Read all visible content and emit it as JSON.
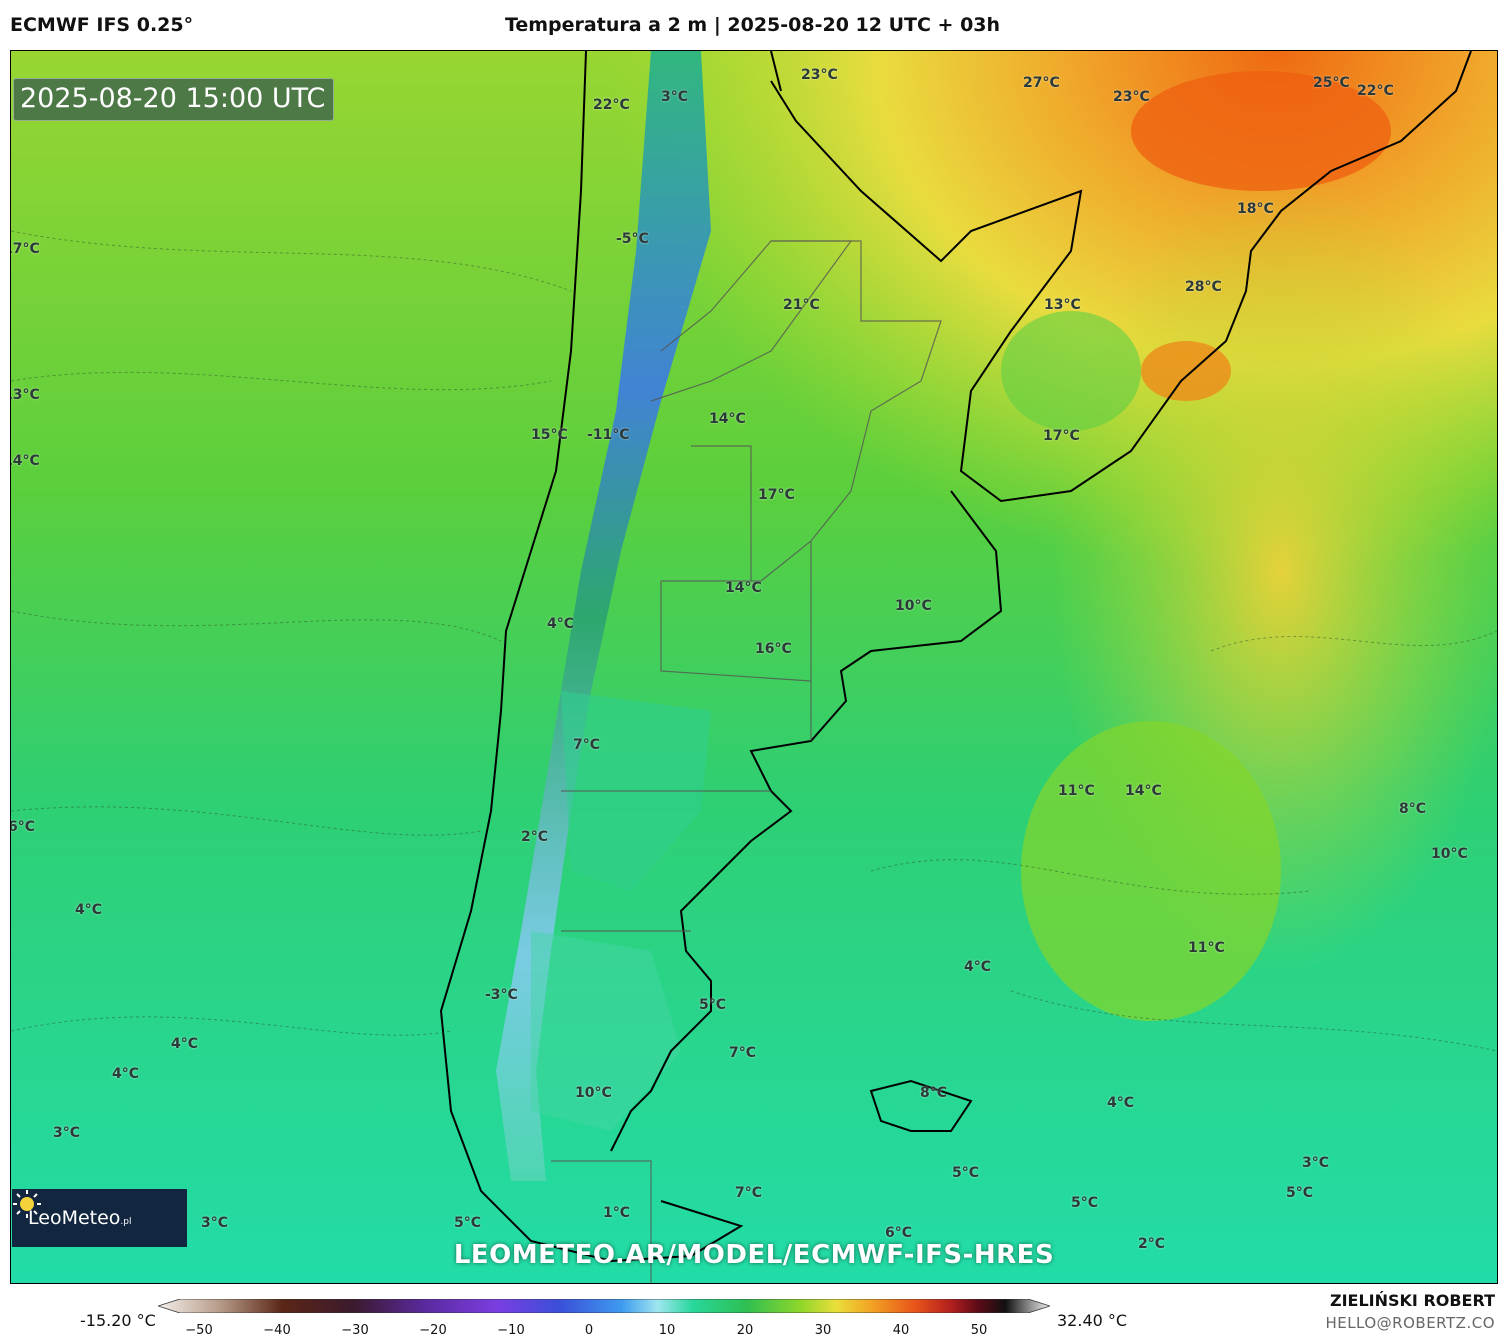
{
  "header": {
    "model": "ECMWF IFS 0.25°",
    "title": "Temperatura a 2 m | 2025-08-20 12 UTC + 03h"
  },
  "map": {
    "valid_time": "2025-08-20 15:00 UTC",
    "watermark": "LEOMETEO.AR/MODEL/ECMWF-IFS-HRES",
    "temperature_labels": [
      "23°C",
      "22°C",
      "27°C",
      "23°C",
      "25°C",
      "22°C",
      "3°C",
      "18°C",
      "17°C",
      "-5°C",
      "28°C",
      "21°C",
      "13°C",
      "13°C",
      "14°C",
      "14°C",
      "15°C",
      "-11°C",
      "17°C",
      "17°C",
      "14°C",
      "10°C",
      "4°C",
      "16°C",
      "7°C",
      "11°C",
      "14°C",
      "8°C",
      "6°C",
      "2°C",
      "10°C",
      "4°C",
      "4°C",
      "11°C",
      "-3°C",
      "5°C",
      "7°C",
      "4°C",
      "4°C",
      "8°C",
      "10°C",
      "4°C",
      "3°C",
      "5°C",
      "3°C",
      "7°C",
      "5°C",
      "5°C",
      "3°C",
      "1°C",
      "5°C",
      "6°C",
      "2°C"
    ],
    "colors": {
      "warm": "#e8861a",
      "hot": "#ef6a12",
      "mild": "#ecd63c",
      "neutral": "#a6db2e",
      "cool": "#2ecf6c",
      "cold": "#1fe0a6",
      "freezing": "#4f8fe8",
      "outline": "#000000"
    }
  },
  "logo": {
    "text": "LeoMeteo",
    "suffix": ".pl",
    "icon": "sun-icon"
  },
  "colorbar": {
    "min_label": "-15.20 °C",
    "max_label": "32.40 °C",
    "ticks": [
      "−50",
      "−40",
      "−30",
      "−20",
      "−10",
      "0",
      "10",
      "20",
      "30",
      "40",
      "50"
    ]
  },
  "author": {
    "name": "ZIELIŃSKI ROBERT",
    "email": "HELLO@ROBERTZ.CO"
  }
}
